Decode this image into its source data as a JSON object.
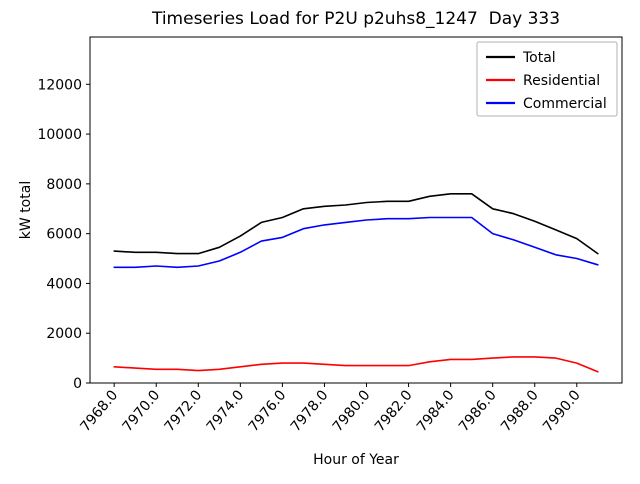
{
  "figure": {
    "title": "Timeseries Load for P2U p2uhs8_1247  Day 333",
    "xlabel": "Hour of Year",
    "ylabel": "kW total"
  },
  "chart_data": {
    "type": "line",
    "title": "Timeseries Load for P2U p2uhs8_1247  Day 333",
    "xlabel": "Hour of Year",
    "ylabel": "kW total",
    "grid": false,
    "legend_position": "upper right",
    "xlim": [
      7966.85,
      7992.15
    ],
    "ylim": [
      0,
      13900
    ],
    "x_ticks": [
      7968,
      7970,
      7972,
      7974,
      7976,
      7978,
      7980,
      7982,
      7984,
      7986,
      7988,
      7990
    ],
    "x_tick_labels": [
      "7968.0",
      "7970.0",
      "7972.0",
      "7974.0",
      "7976.0",
      "7978.0",
      "7980.0",
      "7982.0",
      "7984.0",
      "7986.0",
      "7988.0",
      "7990.0"
    ],
    "y_ticks": [
      0,
      2000,
      4000,
      6000,
      8000,
      10000,
      12000
    ],
    "y_tick_labels": [
      "0",
      "2000",
      "4000",
      "6000",
      "8000",
      "10000",
      "12000"
    ],
    "x": [
      7968,
      7969,
      7970,
      7971,
      7972,
      7973,
      7974,
      7975,
      7976,
      7977,
      7978,
      7979,
      7980,
      7981,
      7982,
      7983,
      7984,
      7985,
      7986,
      7987,
      7988,
      7989,
      7990,
      7991
    ],
    "series": [
      {
        "name": "Total",
        "color": "#000000",
        "values": [
          5300,
          5250,
          5250,
          5200,
          5200,
          5450,
          5900,
          6450,
          6650,
          7000,
          7100,
          7150,
          7250,
          7300,
          7300,
          7500,
          7600,
          7600,
          7000,
          6800,
          6500,
          6150,
          5800,
          5200
        ]
      },
      {
        "name": "Residential",
        "color": "#ff0000",
        "values": [
          650,
          600,
          550,
          550,
          500,
          550,
          650,
          750,
          800,
          800,
          750,
          700,
          700,
          700,
          700,
          850,
          950,
          950,
          1000,
          1050,
          1050,
          1000,
          800,
          450
        ]
      },
      {
        "name": "Commercial",
        "color": "#0000ff",
        "values": [
          4650,
          4650,
          4700,
          4650,
          4700,
          4900,
          5250,
          5700,
          5850,
          6200,
          6350,
          6450,
          6550,
          6600,
          6600,
          6650,
          6650,
          6650,
          6000,
          5750,
          5450,
          5150,
          5000,
          4750
        ]
      }
    ]
  }
}
